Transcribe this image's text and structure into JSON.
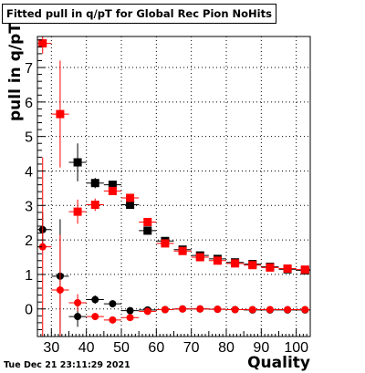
{
  "chart_data": {
    "type": "scatter",
    "title": "Fitted pull in q/pT for Global Rec Pion NoHits",
    "xlabel": "Quality",
    "ylabel": "pull in q/pT",
    "xlim": [
      26,
      104
    ],
    "ylim": [
      -0.8,
      7.9
    ],
    "x_ticks": [
      30,
      40,
      50,
      60,
      70,
      80,
      90,
      100
    ],
    "y_ticks": [
      0,
      1,
      2,
      3,
      4,
      5,
      6,
      7
    ],
    "grid": true,
    "bin_half_width": 2.5,
    "series": [
      {
        "color": "#000000",
        "marker": "square",
        "points": [
          {
            "x": 37.5,
            "y": 4.25,
            "yerr": 0.55
          },
          {
            "x": 42.5,
            "y": 3.65,
            "yerr": 0.15
          },
          {
            "x": 47.5,
            "y": 3.6,
            "yerr": 0.12
          },
          {
            "x": 52.5,
            "y": 3.02,
            "yerr": 0.08
          },
          {
            "x": 57.5,
            "y": 2.27,
            "yerr": 0.06
          },
          {
            "x": 62.5,
            "y": 1.97,
            "yerr": 0.05
          },
          {
            "x": 67.5,
            "y": 1.72,
            "yerr": 0.04
          },
          {
            "x": 72.5,
            "y": 1.55,
            "yerr": 0.04
          },
          {
            "x": 77.5,
            "y": 1.45,
            "yerr": 0.03
          },
          {
            "x": 82.5,
            "y": 1.35,
            "yerr": 0.03
          },
          {
            "x": 87.5,
            "y": 1.3,
            "yerr": 0.03
          },
          {
            "x": 92.5,
            "y": 1.22,
            "yerr": 0.03
          },
          {
            "x": 97.5,
            "y": 1.15,
            "yerr": 0.03
          },
          {
            "x": 102.5,
            "y": 1.12,
            "yerr": 0.03
          }
        ]
      },
      {
        "color": "#ff0000",
        "marker": "square",
        "points": [
          {
            "x": 27.5,
            "y": 7.7,
            "yerr": 0.3
          },
          {
            "x": 32.5,
            "y": 5.65,
            "yerr": 1.55
          },
          {
            "x": 37.5,
            "y": 2.82,
            "yerr": 0.35
          },
          {
            "x": 42.5,
            "y": 3.02,
            "yerr": 0.18
          },
          {
            "x": 47.5,
            "y": 3.42,
            "yerr": 0.12
          },
          {
            "x": 52.5,
            "y": 3.22,
            "yerr": 0.08
          },
          {
            "x": 57.5,
            "y": 2.52,
            "yerr": 0.06
          },
          {
            "x": 62.5,
            "y": 1.9,
            "yerr": 0.05
          },
          {
            "x": 67.5,
            "y": 1.68,
            "yerr": 0.04
          },
          {
            "x": 72.5,
            "y": 1.5,
            "yerr": 0.04
          },
          {
            "x": 77.5,
            "y": 1.4,
            "yerr": 0.03
          },
          {
            "x": 82.5,
            "y": 1.32,
            "yerr": 0.03
          },
          {
            "x": 87.5,
            "y": 1.27,
            "yerr": 0.03
          },
          {
            "x": 92.5,
            "y": 1.2,
            "yerr": 0.03
          },
          {
            "x": 97.5,
            "y": 1.17,
            "yerr": 0.03
          },
          {
            "x": 102.5,
            "y": 1.14,
            "yerr": 0.03
          }
        ]
      },
      {
        "color": "#000000",
        "marker": "circle",
        "points": [
          {
            "x": 27.5,
            "y": 2.3,
            "yerr": 0.5
          },
          {
            "x": 32.5,
            "y": 0.95,
            "yerr": 1.65
          },
          {
            "x": 37.5,
            "y": -0.22,
            "yerr": 0.3
          },
          {
            "x": 42.5,
            "y": 0.27,
            "yerr": 0.12
          },
          {
            "x": 47.5,
            "y": 0.15,
            "yerr": 0.08
          },
          {
            "x": 52.5,
            "y": -0.05,
            "yerr": 0.06
          },
          {
            "x": 57.5,
            "y": -0.03,
            "yerr": 0.05
          },
          {
            "x": 62.5,
            "y": -0.02,
            "yerr": 0.04
          },
          {
            "x": 67.5,
            "y": 0.0,
            "yerr": 0.03
          },
          {
            "x": 72.5,
            "y": 0.0,
            "yerr": 0.03
          },
          {
            "x": 77.5,
            "y": -0.01,
            "yerr": 0.03
          },
          {
            "x": 82.5,
            "y": -0.02,
            "yerr": 0.03
          },
          {
            "x": 87.5,
            "y": -0.03,
            "yerr": 0.03
          },
          {
            "x": 92.5,
            "y": -0.03,
            "yerr": 0.03
          },
          {
            "x": 97.5,
            "y": -0.03,
            "yerr": 0.03
          },
          {
            "x": 102.5,
            "y": -0.03,
            "yerr": 0.03
          }
        ]
      },
      {
        "color": "#ff0000",
        "marker": "circle",
        "points": [
          {
            "x": 27.5,
            "y": 1.8,
            "yerr": 2.6
          },
          {
            "x": 32.5,
            "y": 0.55,
            "yerr": 1.6
          },
          {
            "x": 37.5,
            "y": 0.18,
            "yerr": 0.25
          },
          {
            "x": 42.5,
            "y": -0.22,
            "yerr": 0.1
          },
          {
            "x": 47.5,
            "y": -0.32,
            "yerr": 0.07
          },
          {
            "x": 52.5,
            "y": -0.25,
            "yerr": 0.05
          },
          {
            "x": 57.5,
            "y": -0.07,
            "yerr": 0.04
          },
          {
            "x": 62.5,
            "y": -0.02,
            "yerr": 0.03
          },
          {
            "x": 67.5,
            "y": 0.0,
            "yerr": 0.03
          },
          {
            "x": 72.5,
            "y": 0.0,
            "yerr": 0.03
          },
          {
            "x": 77.5,
            "y": -0.01,
            "yerr": 0.03
          },
          {
            "x": 82.5,
            "y": -0.02,
            "yerr": 0.03
          },
          {
            "x": 87.5,
            "y": -0.02,
            "yerr": 0.03
          },
          {
            "x": 92.5,
            "y": -0.02,
            "yerr": 0.03
          },
          {
            "x": 97.5,
            "y": -0.02,
            "yerr": 0.03
          },
          {
            "x": 102.5,
            "y": -0.02,
            "yerr": 0.03
          }
        ]
      }
    ]
  },
  "timestamp": "Tue Dec 21 23:11:29 2021"
}
